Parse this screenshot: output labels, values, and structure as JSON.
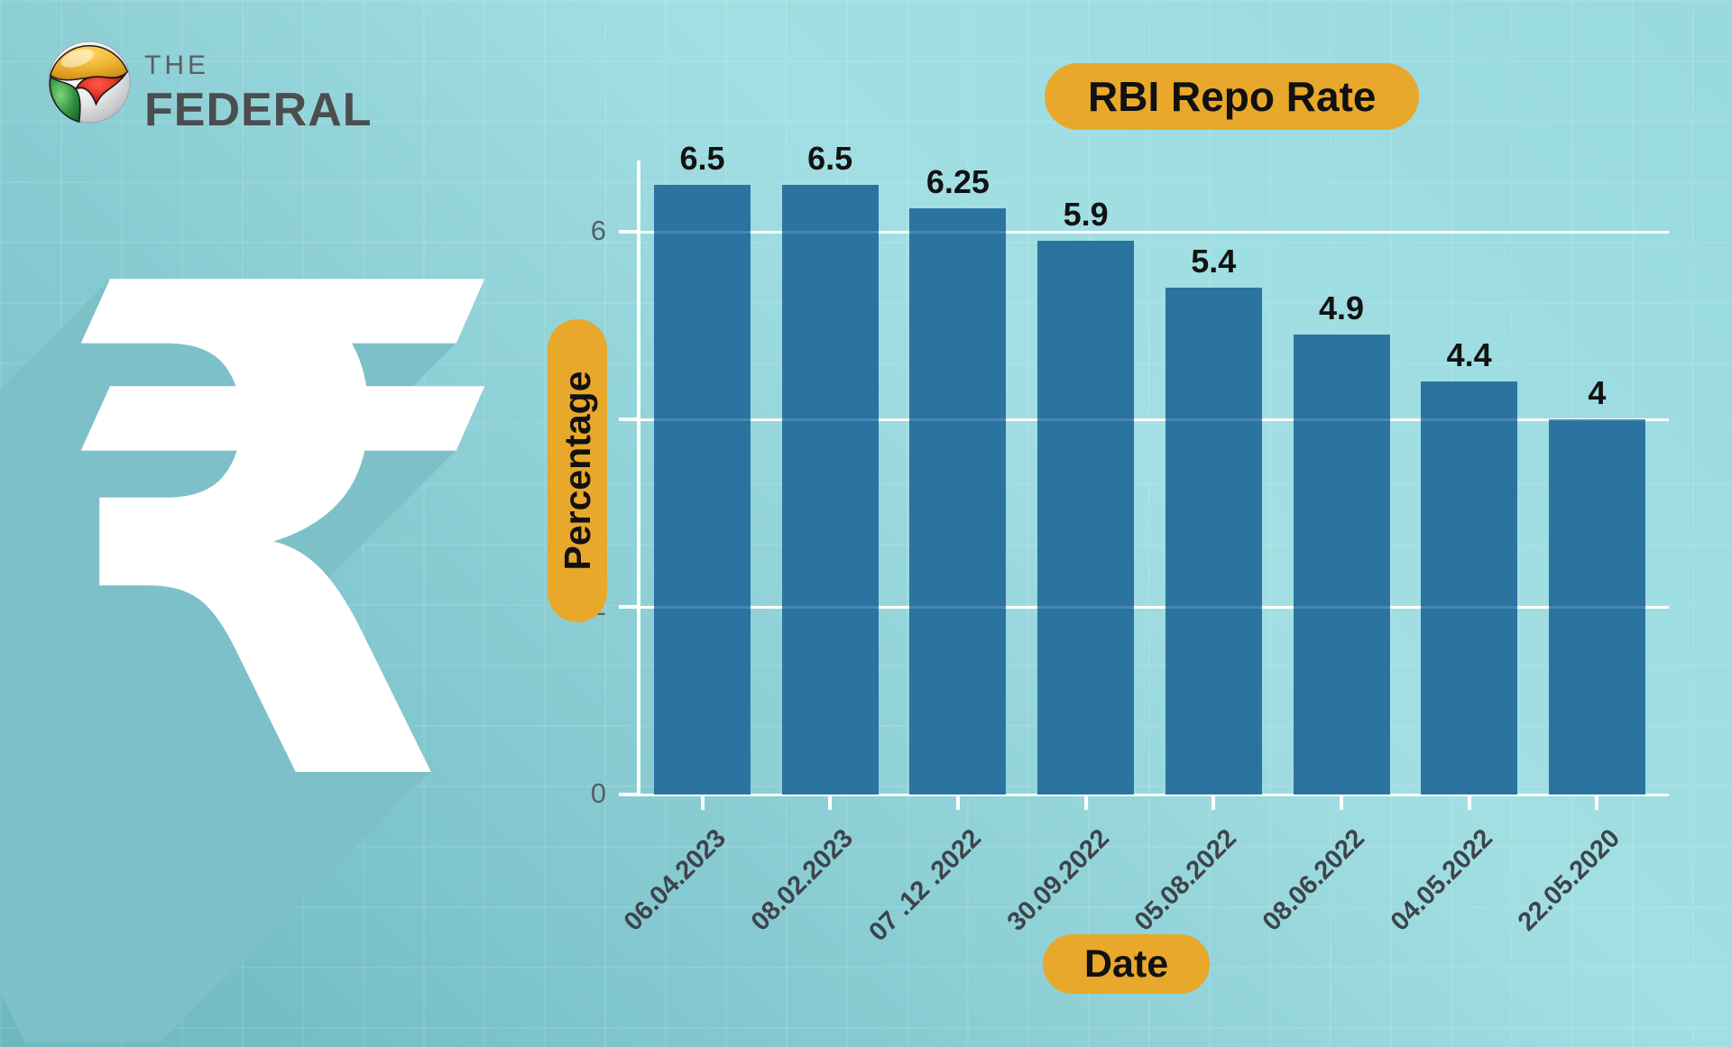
{
  "brand": {
    "word_the": "THE",
    "word_federal": "FEDERAL"
  },
  "decor": {
    "rupee_symbol": "₹"
  },
  "chart_data": {
    "type": "bar",
    "title": "RBI Repo Rate",
    "xlabel": "Date",
    "ylabel": "Percentage",
    "categories": [
      "06.04.2023",
      "08.02.2023",
      "07 .12 .2022",
      "30.09.2022",
      "05.08.2022",
      "08.06.2022",
      "04.05.2022",
      "22.05.2020"
    ],
    "values": [
      6.5,
      6.5,
      6.25,
      5.9,
      5.4,
      4.9,
      4.4,
      4
    ],
    "value_labels": [
      "6.5",
      "6.5",
      "6.25",
      "5.9",
      "5.4",
      "4.9",
      "4.4",
      "4"
    ],
    "yticks": [
      0,
      2,
      4,
      6
    ],
    "ylim": [
      0,
      6.76
    ],
    "grid": true,
    "legend": "none",
    "colors": {
      "bar": "#2b74a1",
      "pill_bg": "#e8a82c",
      "pill_text": "#111111",
      "axis": "#ffffff",
      "ytick_label": "#566067",
      "xtick_label": "#3d444a",
      "value_label": "#121212",
      "rupee": "#ffffff",
      "rupee_shadow": "#7ec0c8",
      "background_light": "#a2dfe3",
      "background_dark": "#6db7c0"
    }
  }
}
